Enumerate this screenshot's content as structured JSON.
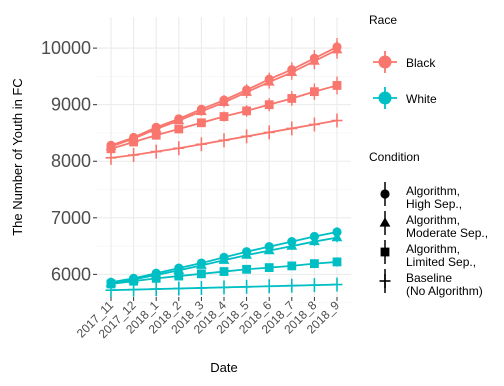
{
  "chart_data": {
    "type": "line",
    "xlabel": "Date",
    "ylabel": "The Number of Youth in FC",
    "categories": [
      "2017_11",
      "2017_12",
      "2018_1",
      "2018_2",
      "2018_3",
      "2018_4",
      "2018_5",
      "2018_6",
      "2018_7",
      "2018_8",
      "2018_9"
    ],
    "yticks": [
      6000,
      7000,
      8000,
      9000,
      10000
    ],
    "ylim": [
      5600,
      10550
    ],
    "grid": true,
    "colors": {
      "Black": "#F8766D",
      "White": "#00BFC4"
    },
    "series": [
      {
        "race": "Black",
        "condition": "Algorithm, High Sep.",
        "shape": "circle",
        "values": [
          8280,
          8420,
          8600,
          8750,
          8920,
          9080,
          9260,
          9450,
          9620,
          9820,
          10020
        ]
      },
      {
        "race": "Black",
        "condition": "Algorithm, Moderate Sep.",
        "shape": "triangle",
        "values": [
          8260,
          8400,
          8570,
          8720,
          8880,
          9040,
          9220,
          9400,
          9570,
          9770,
          9970
        ]
      },
      {
        "race": "Black",
        "condition": "Algorithm, Limited Sep.",
        "shape": "square",
        "values": [
          8220,
          8340,
          8460,
          8570,
          8680,
          8790,
          8890,
          9000,
          9110,
          9230,
          9340
        ]
      },
      {
        "race": "Black",
        "condition": "Baseline (No Algorithm)",
        "shape": "plus",
        "values": [
          8060,
          8110,
          8170,
          8230,
          8300,
          8370,
          8440,
          8510,
          8580,
          8650,
          8720
        ]
      },
      {
        "race": "White",
        "condition": "Algorithm, High Sep.",
        "shape": "circle",
        "values": [
          5860,
          5930,
          6020,
          6110,
          6200,
          6300,
          6400,
          6490,
          6580,
          6670,
          6750
        ]
      },
      {
        "race": "White",
        "condition": "Algorithm, Moderate Sep.",
        "shape": "triangle",
        "values": [
          5850,
          5910,
          5990,
          6070,
          6160,
          6250,
          6340,
          6420,
          6500,
          6580,
          6650
        ]
      },
      {
        "race": "White",
        "condition": "Algorithm, Limited Sep.",
        "shape": "square",
        "values": [
          5830,
          5880,
          5930,
          5970,
          6010,
          6050,
          6090,
          6120,
          6150,
          6190,
          6220
        ]
      },
      {
        "race": "White",
        "condition": "Baseline (No Algorithm)",
        "shape": "plus",
        "values": [
          5720,
          5730,
          5740,
          5750,
          5760,
          5770,
          5780,
          5790,
          5800,
          5810,
          5820
        ]
      }
    ],
    "legend": {
      "placement": "right",
      "race_title": "Race",
      "race_items": [
        "Black",
        "White"
      ],
      "condition_title": "Condition",
      "condition_items": [
        {
          "lines": [
            "Algorithm,",
            "High Sep.,"
          ],
          "shape": "circle"
        },
        {
          "lines": [
            "Algorithm,",
            "Moderate Sep.,"
          ],
          "shape": "triangle"
        },
        {
          "lines": [
            "Algorithm,",
            "Limited Sep.,"
          ],
          "shape": "square"
        },
        {
          "lines": [
            "Baseline",
            "(No Algorithm)"
          ],
          "shape": "plus"
        }
      ]
    }
  }
}
